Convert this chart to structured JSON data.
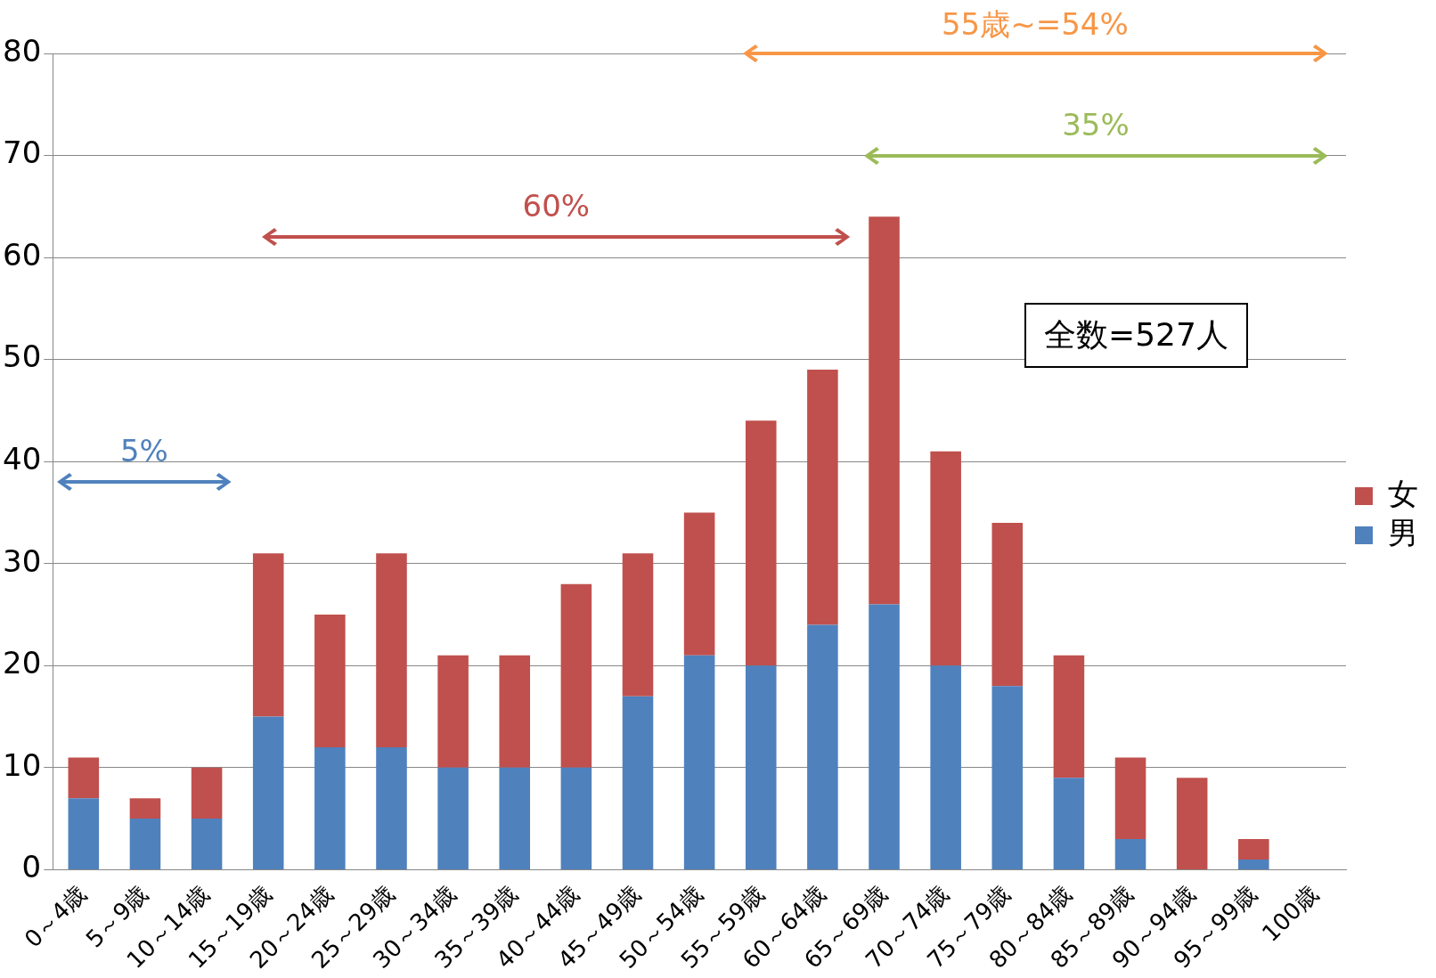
{
  "chart_data": {
    "type": "bar",
    "stacked": true,
    "categories": [
      "0～4歳",
      "5～9歳",
      "10～14歳",
      "15～19歳",
      "20～24歳",
      "25～29歳",
      "30～34歳",
      "35～39歳",
      "40～44歳",
      "45～49歳",
      "50～54歳",
      "55～59歳",
      "60～64歳",
      "65～69歳",
      "70～74歳",
      "75～79歳",
      "80～84歳",
      "85～89歳",
      "90～94歳",
      "95～99歳",
      "100歳"
    ],
    "series": [
      {
        "name": "男",
        "color": "#4f81bd",
        "values": [
          7,
          5,
          5,
          15,
          12,
          12,
          10,
          10,
          10,
          17,
          21,
          20,
          24,
          26,
          20,
          18,
          9,
          3,
          0,
          1,
          0
        ]
      },
      {
        "name": "女",
        "color": "#c0504d",
        "values": [
          4,
          2,
          5,
          16,
          13,
          19,
          11,
          11,
          18,
          14,
          14,
          24,
          25,
          38,
          21,
          16,
          12,
          8,
          9,
          2,
          0
        ]
      }
    ],
    "ylim": [
      0,
      80
    ],
    "yticks": [
      0,
      10,
      20,
      30,
      40,
      50,
      60,
      70,
      80
    ],
    "grid": "y",
    "legend": "right",
    "annotations": [
      "5%",
      "60%",
      "35%",
      "55歳~=54%",
      "全数=527人"
    ]
  }
}
